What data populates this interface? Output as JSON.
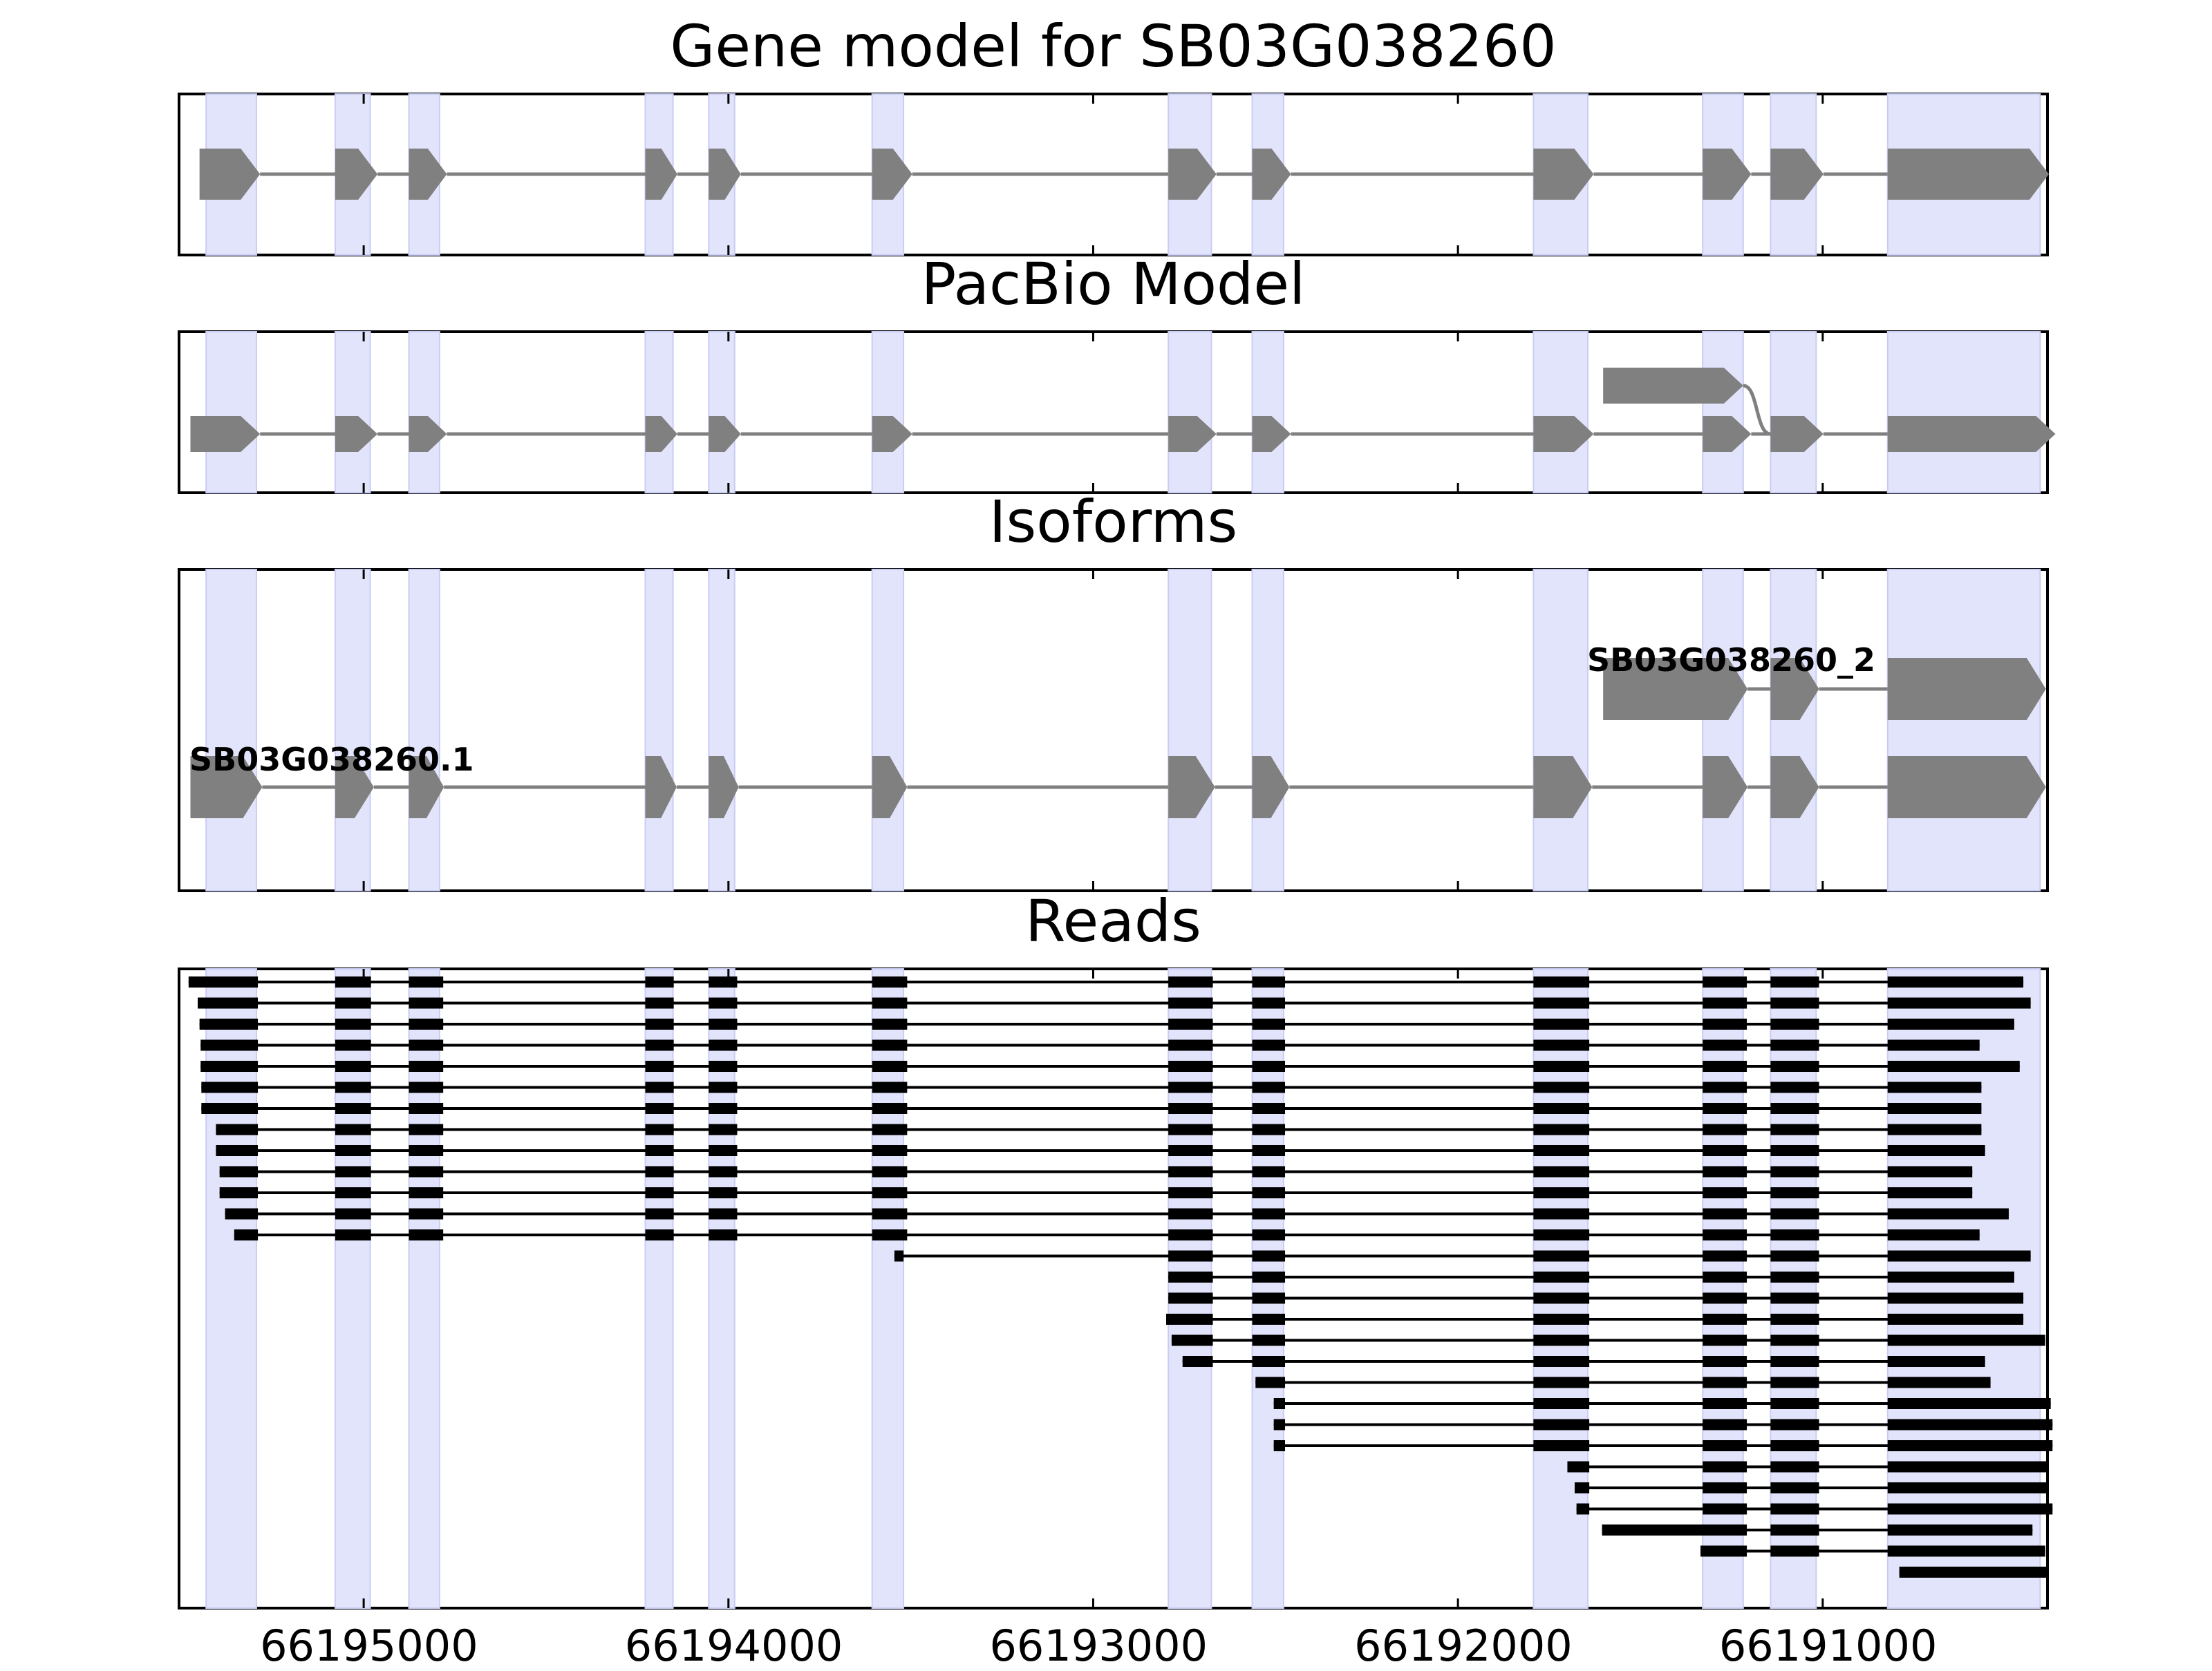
{
  "titles": {
    "gene_model": "Gene model for SB03G038260",
    "pacbio_model": "PacBio Model",
    "isoforms": "Isoforms",
    "reads": "Reads"
  },
  "x_axis": {
    "reversed": true,
    "domain": [
      66195510,
      66190380
    ],
    "ticks": [
      {
        "value": 66195000,
        "label": "66195000"
      },
      {
        "value": 66194000,
        "label": "66194000"
      },
      {
        "value": 66193000,
        "label": "66193000"
      },
      {
        "value": 66192000,
        "label": "66192000"
      },
      {
        "value": 66191000,
        "label": "66191000"
      }
    ]
  },
  "isoform_labels": {
    "isoform_1": "SB03G038260.1",
    "isoform_2": "SB03G038260_2"
  },
  "colors": {
    "exon_fill": "#808080",
    "read_fill": "#000000",
    "highlight": "#e2e4fb",
    "intron_line": "#808080"
  },
  "highlight_regions": [
    [
      66195432,
      66195294
    ],
    [
      66195078,
      66194982
    ],
    [
      66194876,
      66194792
    ],
    [
      66194228,
      66194152
    ],
    [
      66194054,
      66193983
    ],
    [
      66193606,
      66193520
    ],
    [
      66192794,
      66192676
    ],
    [
      66192564,
      66192478
    ],
    [
      66191793,
      66191644
    ],
    [
      66191329,
      66191218
    ],
    [
      66191143,
      66191018
    ],
    [
      66190822,
      66190404
    ]
  ],
  "gene_model_exons": [
    [
      66195450,
      66195284
    ],
    [
      66195078,
      66194962
    ],
    [
      66194876,
      66194772
    ],
    [
      66194228,
      66194140
    ],
    [
      66194054,
      66193966
    ],
    [
      66193606,
      66193496
    ],
    [
      66192794,
      66192662
    ],
    [
      66192564,
      66192458
    ],
    [
      66191793,
      66191628
    ],
    [
      66191329,
      66191196
    ],
    [
      66191143,
      66190998
    ],
    [
      66190822,
      66190380
    ]
  ],
  "pacbio_model": {
    "main": [
      [
        66195475,
        66195284
      ],
      [
        66195078,
        66194962
      ],
      [
        66194876,
        66194772
      ],
      [
        66194228,
        66194140
      ],
      [
        66194054,
        66193966
      ],
      [
        66193606,
        66193496
      ],
      [
        66192794,
        66192662
      ],
      [
        66192564,
        66192458
      ],
      [
        66191793,
        66191628
      ],
      [
        66191329,
        66191196
      ],
      [
        66191143,
        66190998
      ],
      [
        66190822,
        66190362
      ]
    ],
    "alt_first_exon": [
      66191602,
      66191218
    ]
  },
  "isoforms": {
    "isoform_1": [
      [
        66195475,
        66195278
      ],
      [
        66195078,
        66194972
      ],
      [
        66194876,
        66194780
      ],
      [
        66194228,
        66194142
      ],
      [
        66194054,
        66193972
      ],
      [
        66193606,
        66193510
      ],
      [
        66192794,
        66192666
      ],
      [
        66192564,
        66192462
      ],
      [
        66191793,
        66191632
      ],
      [
        66191329,
        66191206
      ],
      [
        66191143,
        66191010
      ],
      [
        66190822,
        66190388
      ]
    ],
    "isoform_2": [
      [
        66191602,
        66191206
      ],
      [
        66191143,
        66191010
      ],
      [
        66190822,
        66190388
      ]
    ]
  },
  "reads": [
    {
      "start": 66195480,
      "exons": [
        [
          66195480,
          66195290
        ],
        [
          66195078,
          66194980
        ],
        [
          66194876,
          66194782
        ],
        [
          66194228,
          66194150
        ],
        [
          66194054,
          66193976
        ],
        [
          66193606,
          66193510
        ],
        [
          66192794,
          66192672
        ],
        [
          66192564,
          66192474
        ],
        [
          66191793,
          66191640
        ],
        [
          66191329,
          66191208
        ],
        [
          66191143,
          66191010
        ],
        [
          66190822,
          66190450
        ]
      ]
    },
    {
      "start": 66195455,
      "exons": [
        [
          66195455,
          66195290
        ],
        [
          66195078,
          66194980
        ],
        [
          66194876,
          66194782
        ],
        [
          66194228,
          66194150
        ],
        [
          66194054,
          66193976
        ],
        [
          66193606,
          66193510
        ],
        [
          66192794,
          66192672
        ],
        [
          66192564,
          66192474
        ],
        [
          66191793,
          66191640
        ],
        [
          66191329,
          66191208
        ],
        [
          66191143,
          66191010
        ],
        [
          66190822,
          66190430
        ]
      ]
    },
    {
      "start": 66195450,
      "exons": [
        [
          66195450,
          66195290
        ],
        [
          66195078,
          66194980
        ],
        [
          66194876,
          66194782
        ],
        [
          66194228,
          66194150
        ],
        [
          66194054,
          66193976
        ],
        [
          66193606,
          66193510
        ],
        [
          66192794,
          66192672
        ],
        [
          66192564,
          66192474
        ],
        [
          66191793,
          66191640
        ],
        [
          66191329,
          66191208
        ],
        [
          66191143,
          66191010
        ],
        [
          66190822,
          66190475
        ]
      ]
    },
    {
      "start": 66195447,
      "exons": [
        [
          66195447,
          66195290
        ],
        [
          66195078,
          66194980
        ],
        [
          66194876,
          66194782
        ],
        [
          66194228,
          66194150
        ],
        [
          66194054,
          66193976
        ],
        [
          66193606,
          66193510
        ],
        [
          66192794,
          66192672
        ],
        [
          66192564,
          66192474
        ],
        [
          66191793,
          66191640
        ],
        [
          66191329,
          66191208
        ],
        [
          66191143,
          66191010
        ],
        [
          66190822,
          66190570
        ]
      ]
    },
    {
      "start": 66195447,
      "exons": [
        [
          66195447,
          66195290
        ],
        [
          66195078,
          66194980
        ],
        [
          66194876,
          66194782
        ],
        [
          66194228,
          66194150
        ],
        [
          66194054,
          66193976
        ],
        [
          66193606,
          66193510
        ],
        [
          66192794,
          66192672
        ],
        [
          66192564,
          66192474
        ],
        [
          66191793,
          66191640
        ],
        [
          66191329,
          66191208
        ],
        [
          66191143,
          66191010
        ],
        [
          66190822,
          66190460
        ]
      ]
    },
    {
      "start": 66195445,
      "exons": [
        [
          66195445,
          66195290
        ],
        [
          66195078,
          66194980
        ],
        [
          66194876,
          66194782
        ],
        [
          66194228,
          66194150
        ],
        [
          66194054,
          66193976
        ],
        [
          66193606,
          66193510
        ],
        [
          66192794,
          66192672
        ],
        [
          66192564,
          66192474
        ],
        [
          66191793,
          66191640
        ],
        [
          66191329,
          66191208
        ],
        [
          66191143,
          66191010
        ],
        [
          66190822,
          66190565
        ]
      ]
    },
    {
      "start": 66195445,
      "exons": [
        [
          66195445,
          66195290
        ],
        [
          66195078,
          66194980
        ],
        [
          66194876,
          66194782
        ],
        [
          66194228,
          66194150
        ],
        [
          66194054,
          66193976
        ],
        [
          66193606,
          66193510
        ],
        [
          66192794,
          66192672
        ],
        [
          66192564,
          66192474
        ],
        [
          66191793,
          66191640
        ],
        [
          66191329,
          66191208
        ],
        [
          66191143,
          66191010
        ],
        [
          66190822,
          66190565
        ]
      ]
    },
    {
      "start": 66195405,
      "exons": [
        [
          66195405,
          66195290
        ],
        [
          66195078,
          66194980
        ],
        [
          66194876,
          66194782
        ],
        [
          66194228,
          66194150
        ],
        [
          66194054,
          66193976
        ],
        [
          66193606,
          66193510
        ],
        [
          66192794,
          66192672
        ],
        [
          66192564,
          66192474
        ],
        [
          66191793,
          66191640
        ],
        [
          66191329,
          66191208
        ],
        [
          66191143,
          66191010
        ],
        [
          66190822,
          66190565
        ]
      ]
    },
    {
      "start": 66195405,
      "exons": [
        [
          66195405,
          66195290
        ],
        [
          66195078,
          66194980
        ],
        [
          66194876,
          66194782
        ],
        [
          66194228,
          66194150
        ],
        [
          66194054,
          66193976
        ],
        [
          66193606,
          66193510
        ],
        [
          66192794,
          66192672
        ],
        [
          66192564,
          66192474
        ],
        [
          66191793,
          66191640
        ],
        [
          66191329,
          66191208
        ],
        [
          66191143,
          66191010
        ],
        [
          66190822,
          66190555
        ]
      ]
    },
    {
      "start": 66195395,
      "exons": [
        [
          66195395,
          66195290
        ],
        [
          66195078,
          66194980
        ],
        [
          66194876,
          66194782
        ],
        [
          66194228,
          66194150
        ],
        [
          66194054,
          66193976
        ],
        [
          66193606,
          66193510
        ],
        [
          66192794,
          66192672
        ],
        [
          66192564,
          66192474
        ],
        [
          66191793,
          66191640
        ],
        [
          66191329,
          66191208
        ],
        [
          66191143,
          66191010
        ],
        [
          66190822,
          66190590
        ]
      ]
    },
    {
      "start": 66195395,
      "exons": [
        [
          66195395,
          66195290
        ],
        [
          66195078,
          66194980
        ],
        [
          66194876,
          66194782
        ],
        [
          66194228,
          66194150
        ],
        [
          66194054,
          66193976
        ],
        [
          66193606,
          66193510
        ],
        [
          66192794,
          66192672
        ],
        [
          66192564,
          66192474
        ],
        [
          66191793,
          66191640
        ],
        [
          66191329,
          66191208
        ],
        [
          66191143,
          66191010
        ],
        [
          66190822,
          66190590
        ]
      ]
    },
    {
      "start": 66195380,
      "exons": [
        [
          66195380,
          66195290
        ],
        [
          66195078,
          66194980
        ],
        [
          66194876,
          66194782
        ],
        [
          66194228,
          66194150
        ],
        [
          66194054,
          66193976
        ],
        [
          66193606,
          66193510
        ],
        [
          66192794,
          66192672
        ],
        [
          66192564,
          66192474
        ],
        [
          66191793,
          66191640
        ],
        [
          66191329,
          66191208
        ],
        [
          66191143,
          66191010
        ],
        [
          66190822,
          66190490
        ]
      ]
    },
    {
      "start": 66195355,
      "exons": [
        [
          66195355,
          66195290
        ],
        [
          66195078,
          66194980
        ],
        [
          66194876,
          66194782
        ],
        [
          66194228,
          66194150
        ],
        [
          66194054,
          66193976
        ],
        [
          66193606,
          66193510
        ],
        [
          66192794,
          66192672
        ],
        [
          66192564,
          66192474
        ],
        [
          66191793,
          66191640
        ],
        [
          66191329,
          66191208
        ],
        [
          66191143,
          66191010
        ],
        [
          66190822,
          66190570
        ]
      ]
    },
    {
      "start": 66193545,
      "exons": [
        [
          66193545,
          66193520
        ],
        [
          66192794,
          66192672
        ],
        [
          66192564,
          66192474
        ],
        [
          66191793,
          66191640
        ],
        [
          66191329,
          66191208
        ],
        [
          66191143,
          66191010
        ],
        [
          66190822,
          66190430
        ]
      ]
    },
    {
      "start": 66192794,
      "exons": [
        [
          66192794,
          66192672
        ],
        [
          66192564,
          66192474
        ],
        [
          66191793,
          66191640
        ],
        [
          66191329,
          66191208
        ],
        [
          66191143,
          66191010
        ],
        [
          66190822,
          66190475
        ]
      ]
    },
    {
      "start": 66192794,
      "exons": [
        [
          66192794,
          66192672
        ],
        [
          66192564,
          66192474
        ],
        [
          66191793,
          66191640
        ],
        [
          66191329,
          66191208
        ],
        [
          66191143,
          66191010
        ],
        [
          66190822,
          66190450
        ]
      ]
    },
    {
      "start": 66192800,
      "exons": [
        [
          66192800,
          66192672
        ],
        [
          66192564,
          66192474
        ],
        [
          66191793,
          66191640
        ],
        [
          66191329,
          66191208
        ],
        [
          66191143,
          66191010
        ],
        [
          66190822,
          66190450
        ]
      ]
    },
    {
      "start": 66192785,
      "exons": [
        [
          66192785,
          66192672
        ],
        [
          66192564,
          66192474
        ],
        [
          66191793,
          66191640
        ],
        [
          66191329,
          66191208
        ],
        [
          66191143,
          66191010
        ],
        [
          66190822,
          66190390
        ]
      ]
    },
    {
      "start": 66192755,
      "exons": [
        [
          66192755,
          66192672
        ],
        [
          66192564,
          66192474
        ],
        [
          66191793,
          66191640
        ],
        [
          66191329,
          66191208
        ],
        [
          66191143,
          66191010
        ],
        [
          66190822,
          66190555
        ]
      ]
    },
    {
      "start": 66192555,
      "exons": [
        [
          66192555,
          66192474
        ],
        [
          66191793,
          66191640
        ],
        [
          66191329,
          66191208
        ],
        [
          66191143,
          66191010
        ],
        [
          66190822,
          66190540
        ]
      ]
    },
    {
      "start": 66192505,
      "exons": [
        [
          66192505,
          66192474
        ],
        [
          66191793,
          66191640
        ],
        [
          66191329,
          66191208
        ],
        [
          66191143,
          66191010
        ],
        [
          66190822,
          66190375
        ]
      ]
    },
    {
      "start": 66192505,
      "exons": [
        [
          66192505,
          66192474
        ],
        [
          66191793,
          66191640
        ],
        [
          66191329,
          66191208
        ],
        [
          66191143,
          66191010
        ],
        [
          66190822,
          66190370
        ]
      ]
    },
    {
      "start": 66192505,
      "exons": [
        [
          66192505,
          66192474
        ],
        [
          66191793,
          66191640
        ],
        [
          66191329,
          66191208
        ],
        [
          66191143,
          66191010
        ],
        [
          66190822,
          66190370
        ]
      ]
    },
    {
      "start": 66191700,
      "exons": [
        [
          66191700,
          66191640
        ],
        [
          66191329,
          66191208
        ],
        [
          66191143,
          66191010
        ],
        [
          66190822,
          66190385
        ]
      ]
    },
    {
      "start": 66191680,
      "exons": [
        [
          66191680,
          66191640
        ],
        [
          66191329,
          66191208
        ],
        [
          66191143,
          66191010
        ],
        [
          66190822,
          66190380
        ]
      ]
    },
    {
      "start": 66191675,
      "exons": [
        [
          66191675,
          66191640
        ],
        [
          66191329,
          66191208
        ],
        [
          66191143,
          66191010
        ],
        [
          66190822,
          66190370
        ]
      ]
    },
    {
      "start": 66191605,
      "exons": [
        [
          66191605,
          66191208
        ],
        [
          66191143,
          66191010
        ],
        [
          66190822,
          66190425
        ]
      ]
    },
    {
      "start": 66191335,
      "exons": [
        [
          66191335,
          66191208
        ],
        [
          66191143,
          66191010
        ],
        [
          66190822,
          66190390
        ]
      ]
    },
    {
      "start": 66190790,
      "exons": [
        [
          66190790,
          66190380
        ]
      ]
    }
  ]
}
